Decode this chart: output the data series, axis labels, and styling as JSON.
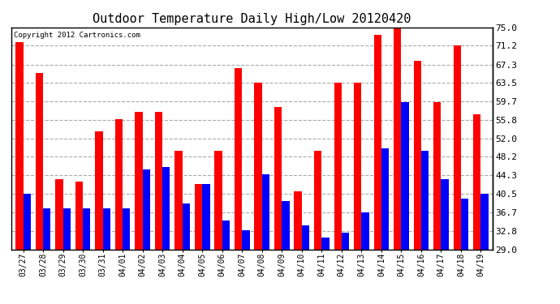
{
  "title": "Outdoor Temperature Daily High/Low 20120420",
  "copyright": "Copyright 2012 Cartronics.com",
  "dates": [
    "03/27",
    "03/28",
    "03/29",
    "03/30",
    "03/31",
    "04/01",
    "04/02",
    "04/03",
    "04/04",
    "04/05",
    "04/06",
    "04/07",
    "04/08",
    "04/09",
    "04/10",
    "04/11",
    "04/12",
    "04/13",
    "04/14",
    "04/15",
    "04/16",
    "04/17",
    "04/18",
    "04/19"
  ],
  "highs": [
    72.0,
    65.5,
    43.5,
    43.0,
    53.5,
    56.0,
    57.5,
    57.5,
    49.5,
    42.5,
    49.5,
    66.5,
    63.5,
    58.5,
    41.0,
    49.5,
    63.5,
    63.5,
    73.5,
    75.0,
    68.0,
    59.5,
    71.2,
    57.0
  ],
  "lows": [
    40.5,
    37.5,
    37.5,
    37.5,
    37.5,
    37.5,
    45.5,
    46.0,
    38.5,
    42.5,
    35.0,
    33.0,
    44.5,
    39.0,
    34.0,
    31.5,
    32.5,
    36.7,
    50.0,
    59.5,
    49.5,
    43.5,
    39.5,
    40.5
  ],
  "high_color": "#ff0000",
  "low_color": "#0000ff",
  "bg_color": "#ffffff",
  "grid_color": "#aaaaaa",
  "ymin": 29.0,
  "ymax": 75.0,
  "yticks_right": [
    29.0,
    32.8,
    36.7,
    40.5,
    44.3,
    48.2,
    52.0,
    55.8,
    59.7,
    63.5,
    67.3,
    71.2,
    75.0
  ],
  "bar_width": 0.38,
  "title_fontsize": 11,
  "tick_fontsize": 7,
  "ytick_fontsize": 8
}
